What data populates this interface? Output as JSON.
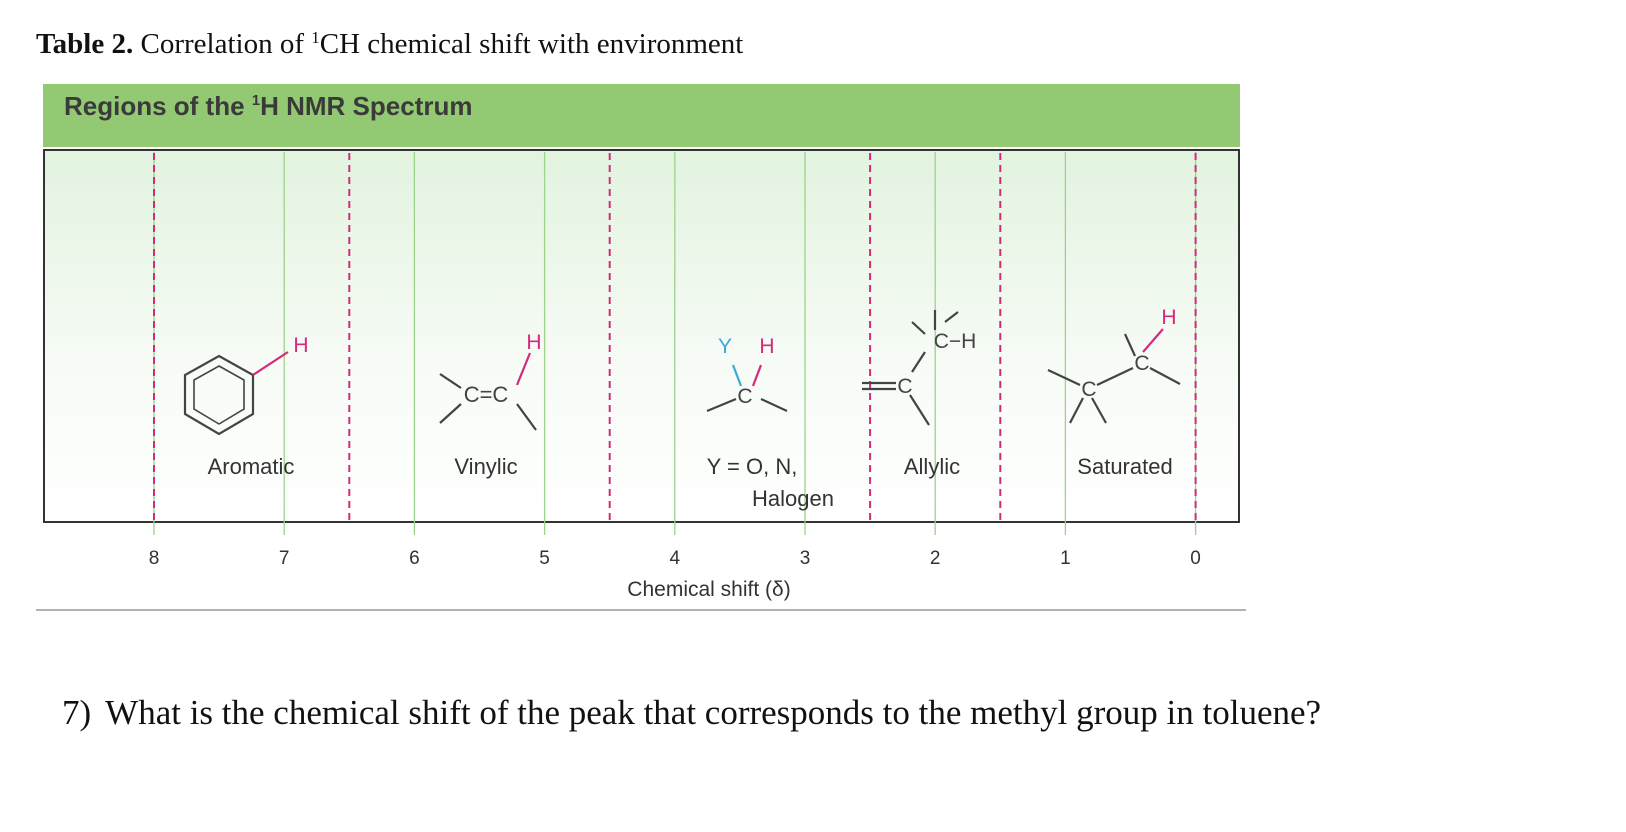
{
  "table": {
    "label": "Table 2.",
    "caption_pre": "Correlation of ",
    "caption_sup": "1",
    "caption_post": "CH chemical shift with environment"
  },
  "figure": {
    "header": {
      "title_pre": "Regions of the ",
      "title_sup": "1",
      "title_post": "H NMR Spectrum",
      "color": "#94c973"
    },
    "axis": {
      "ticks": [
        "8",
        "7",
        "6",
        "5",
        "4",
        "3",
        "2",
        "1",
        "0"
      ],
      "label": "Chemical shift (δ)"
    },
    "regions": [
      {
        "label": "Aromatic"
      },
      {
        "label": "Vinylic"
      },
      {
        "label_line1": "Y = O, N,",
        "label_line2": "Halogen"
      },
      {
        "label": "Allylic"
      },
      {
        "label": "Saturated"
      }
    ],
    "atoms": {
      "H": "H",
      "C": "C",
      "Y": "Y",
      "CH": "C−H",
      "CC": "C=C"
    },
    "colors": {
      "hydrogen": "#d6297a",
      "heteroatom": "#3aa9dc",
      "divider": "#d6297a",
      "frame": "#333333",
      "gridline": "#9cd38a"
    }
  },
  "question": {
    "number": "7)",
    "text": "What is the chemical shift of the peak that corresponds to the methyl group in toluene?"
  }
}
